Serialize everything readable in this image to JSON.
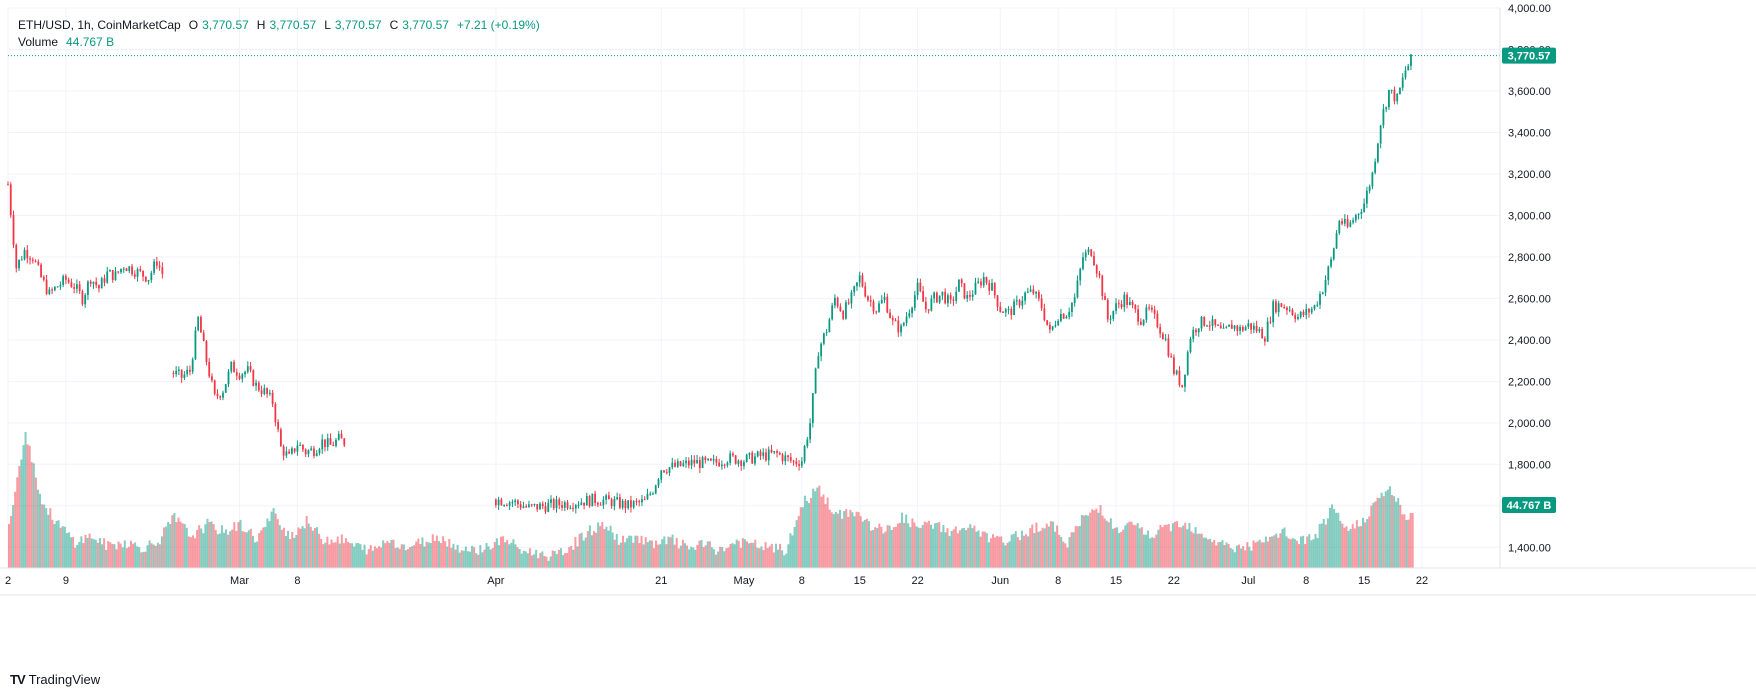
{
  "header": {
    "symbol": "ETH/USD, 1h, CoinMarketCap",
    "open_label": "O",
    "open": "3,770.57",
    "high_label": "H",
    "high": "3,770.57",
    "low_label": "L",
    "low": "3,770.57",
    "close_label": "C",
    "close": "3,770.57",
    "change": "+7.21 (+0.19%)",
    "volume_label": "Volume",
    "volume_value": "44.767 B"
  },
  "price_tag": "3,770.57",
  "volume_tag": "44.767 B",
  "brand": {
    "logo": "TV",
    "name": "TradingView"
  },
  "colors": {
    "up": "#089981",
    "down": "#F23645",
    "price_line": "#089981",
    "grid": "#F0F3FA",
    "axis_text": "#131722"
  },
  "chart_data": {
    "type": "candlestick",
    "title": "ETH/USD, 1h, CoinMarketCap",
    "timeframe": "1h",
    "y_axis": {
      "min": 1300,
      "max": 4000,
      "ticks": [
        "4,000.00",
        "3,800.00",
        "3,600.00",
        "3,400.00",
        "3,200.00",
        "3,000.00",
        "2,800.00",
        "2,600.00",
        "2,400.00",
        "2,200.00",
        "2,000.00",
        "1,800.00",
        "1,600.00",
        "1,400.00"
      ]
    },
    "x_axis": {
      "start": "2024-02-02",
      "end": "2024-07-21",
      "tick_labels": [
        {
          "label": "2",
          "date": "2024-02-02"
        },
        {
          "label": "9",
          "date": "2024-02-09"
        },
        {
          "label": "Mar",
          "date": "2024-03-01"
        },
        {
          "label": "8",
          "date": "2024-03-08"
        },
        {
          "label": "Apr",
          "date": "2024-04-01"
        },
        {
          "label": "21",
          "date": "2024-04-21"
        },
        {
          "label": "May",
          "date": "2024-05-01"
        },
        {
          "label": "8",
          "date": "2024-05-08"
        },
        {
          "label": "15",
          "date": "2024-05-15"
        },
        {
          "label": "22",
          "date": "2024-05-22"
        },
        {
          "label": "Jun",
          "date": "2024-06-01"
        },
        {
          "label": "8",
          "date": "2024-06-08"
        },
        {
          "label": "15",
          "date": "2024-06-15"
        },
        {
          "label": "22",
          "date": "2024-06-22"
        },
        {
          "label": "Jul",
          "date": "2024-07-01"
        },
        {
          "label": "8",
          "date": "2024-07-08"
        },
        {
          "label": "15",
          "date": "2024-07-15"
        },
        {
          "label": "22",
          "date": "2024-07-22"
        }
      ]
    },
    "grid": true,
    "last_price": 3770.57,
    "segments": [
      {
        "name": "segment-1",
        "points": [
          [
            "2024-02-02",
            3150
          ],
          [
            "2024-02-03",
            2750
          ],
          [
            "2024-02-04",
            2830
          ],
          [
            "2024-02-05",
            2800
          ],
          [
            "2024-02-06",
            2700
          ],
          [
            "2024-02-07",
            2620
          ],
          [
            "2024-02-08",
            2660
          ],
          [
            "2024-02-09",
            2690
          ],
          [
            "2024-02-10",
            2660
          ],
          [
            "2024-02-11",
            2600
          ],
          [
            "2024-02-12",
            2700
          ],
          [
            "2024-02-13",
            2650
          ],
          [
            "2024-02-14",
            2720
          ],
          [
            "2024-02-15",
            2710
          ],
          [
            "2024-02-16",
            2760
          ],
          [
            "2024-02-17",
            2740
          ],
          [
            "2024-02-18",
            2720
          ],
          [
            "2024-02-19",
            2700
          ],
          [
            "2024-02-20",
            2780
          ],
          [
            "2024-02-21",
            2690
          ]
        ]
      },
      {
        "name": "segment-2",
        "points": [
          [
            "2024-02-22",
            2240
          ],
          [
            "2024-02-23",
            2220
          ],
          [
            "2024-02-24",
            2250
          ],
          [
            "2024-02-25",
            2500
          ],
          [
            "2024-02-26",
            2300
          ],
          [
            "2024-02-27",
            2120
          ],
          [
            "2024-02-28",
            2160
          ],
          [
            "2024-02-29",
            2270
          ],
          [
            "2024-03-01",
            2240
          ],
          [
            "2024-03-02",
            2250
          ],
          [
            "2024-03-03",
            2180
          ],
          [
            "2024-03-04",
            2150
          ],
          [
            "2024-03-05",
            2100
          ],
          [
            "2024-03-06",
            1880
          ],
          [
            "2024-03-07",
            1830
          ],
          [
            "2024-03-08",
            1900
          ],
          [
            "2024-03-09",
            1860
          ],
          [
            "2024-03-10",
            1870
          ],
          [
            "2024-03-11",
            1910
          ],
          [
            "2024-03-12",
            1890
          ],
          [
            "2024-03-13",
            1920
          ],
          [
            "2024-03-14",
            1900
          ]
        ]
      },
      {
        "name": "segment-3",
        "points": [
          [
            "2024-04-01",
            1630
          ],
          [
            "2024-04-03",
            1620
          ],
          [
            "2024-04-05",
            1590
          ],
          [
            "2024-04-07",
            1600
          ],
          [
            "2024-04-09",
            1610
          ],
          [
            "2024-04-11",
            1620
          ],
          [
            "2024-04-13",
            1630
          ],
          [
            "2024-04-15",
            1620
          ],
          [
            "2024-04-17",
            1600
          ],
          [
            "2024-04-19",
            1620
          ],
          [
            "2024-04-20",
            1680
          ],
          [
            "2024-04-21",
            1780
          ],
          [
            "2024-04-23",
            1790
          ],
          [
            "2024-04-25",
            1810
          ],
          [
            "2024-04-27",
            1800
          ],
          [
            "2024-04-29",
            1830
          ],
          [
            "2024-05-01",
            1820
          ],
          [
            "2024-05-03",
            1840
          ],
          [
            "2024-05-05",
            1850
          ],
          [
            "2024-05-07",
            1810
          ],
          [
            "2024-05-08",
            1820
          ],
          [
            "2024-05-09",
            2000
          ],
          [
            "2024-05-10",
            2350
          ],
          [
            "2024-05-11",
            2450
          ],
          [
            "2024-05-12",
            2600
          ],
          [
            "2024-05-13",
            2530
          ],
          [
            "2024-05-14",
            2600
          ],
          [
            "2024-05-15",
            2700
          ],
          [
            "2024-05-16",
            2600
          ],
          [
            "2024-05-17",
            2550
          ],
          [
            "2024-05-18",
            2600
          ],
          [
            "2024-05-19",
            2480
          ],
          [
            "2024-05-20",
            2450
          ],
          [
            "2024-05-21",
            2550
          ],
          [
            "2024-05-22",
            2650
          ],
          [
            "2024-05-23",
            2550
          ],
          [
            "2024-05-24",
            2600
          ],
          [
            "2024-05-25",
            2620
          ],
          [
            "2024-05-26",
            2570
          ],
          [
            "2024-05-27",
            2670
          ],
          [
            "2024-05-28",
            2600
          ],
          [
            "2024-05-29",
            2650
          ],
          [
            "2024-05-30",
            2700
          ],
          [
            "2024-05-31",
            2650
          ],
          [
            "2024-06-01",
            2550
          ],
          [
            "2024-06-02",
            2530
          ],
          [
            "2024-06-03",
            2570
          ],
          [
            "2024-06-04",
            2620
          ],
          [
            "2024-06-05",
            2630
          ],
          [
            "2024-06-06",
            2560
          ],
          [
            "2024-06-07",
            2430
          ],
          [
            "2024-06-08",
            2520
          ],
          [
            "2024-06-09",
            2530
          ],
          [
            "2024-06-10",
            2600
          ],
          [
            "2024-06-11",
            2800
          ],
          [
            "2024-06-12",
            2830
          ],
          [
            "2024-06-13",
            2700
          ],
          [
            "2024-06-14",
            2500
          ],
          [
            "2024-06-15",
            2560
          ],
          [
            "2024-06-16",
            2600
          ],
          [
            "2024-06-17",
            2550
          ],
          [
            "2024-06-18",
            2500
          ],
          [
            "2024-06-19",
            2540
          ],
          [
            "2024-06-20",
            2480
          ],
          [
            "2024-06-21",
            2400
          ],
          [
            "2024-06-22",
            2250
          ],
          [
            "2024-06-23",
            2180
          ],
          [
            "2024-06-24",
            2420
          ],
          [
            "2024-06-25",
            2480
          ],
          [
            "2024-06-26",
            2490
          ],
          [
            "2024-06-27",
            2460
          ],
          [
            "2024-06-28",
            2430
          ],
          [
            "2024-06-29",
            2470
          ],
          [
            "2024-06-30",
            2450
          ],
          [
            "2024-07-01",
            2470
          ],
          [
            "2024-07-02",
            2450
          ],
          [
            "2024-07-03",
            2420
          ],
          [
            "2024-07-04",
            2560
          ],
          [
            "2024-07-05",
            2570
          ],
          [
            "2024-07-06",
            2550
          ],
          [
            "2024-07-07",
            2510
          ],
          [
            "2024-07-08",
            2530
          ],
          [
            "2024-07-09",
            2560
          ],
          [
            "2024-07-10",
            2650
          ],
          [
            "2024-07-11",
            2780
          ],
          [
            "2024-07-12",
            2980
          ],
          [
            "2024-07-13",
            2940
          ],
          [
            "2024-07-14",
            3000
          ],
          [
            "2024-07-15",
            3060
          ],
          [
            "2024-07-16",
            3200
          ],
          [
            "2024-07-17",
            3450
          ],
          [
            "2024-07-18",
            3600
          ],
          [
            "2024-07-19",
            3560
          ],
          [
            "2024-07-20",
            3700
          ],
          [
            "2024-07-21",
            3770.57
          ]
        ]
      }
    ],
    "volume": {
      "name": "Volume",
      "last": "44.767 B",
      "points": [
        [
          "2024-02-02",
          30
        ],
        [
          "2024-02-04",
          95
        ],
        [
          "2024-02-06",
          45
        ],
        [
          "2024-02-08",
          30
        ],
        [
          "2024-02-10",
          18
        ],
        [
          "2024-02-12",
          22
        ],
        [
          "2024-02-14",
          15
        ],
        [
          "2024-02-16",
          18
        ],
        [
          "2024-02-18",
          14
        ],
        [
          "2024-02-20",
          18
        ],
        [
          "2024-02-22",
          35
        ],
        [
          "2024-02-24",
          22
        ],
        [
          "2024-02-26",
          30
        ],
        [
          "2024-02-28",
          25
        ],
        [
          "2024-03-01",
          30
        ],
        [
          "2024-03-03",
          20
        ],
        [
          "2024-03-05",
          38
        ],
        [
          "2024-03-07",
          22
        ],
        [
          "2024-03-09",
          32
        ],
        [
          "2024-03-11",
          20
        ],
        [
          "2024-03-13",
          20
        ],
        [
          "2024-03-15",
          15
        ],
        [
          "2024-03-17",
          12
        ],
        [
          "2024-03-19",
          20
        ],
        [
          "2024-03-21",
          14
        ],
        [
          "2024-03-23",
          18
        ],
        [
          "2024-03-25",
          22
        ],
        [
          "2024-03-27",
          15
        ],
        [
          "2024-03-29",
          12
        ],
        [
          "2024-03-31",
          15
        ],
        [
          "2024-04-02",
          20
        ],
        [
          "2024-04-04",
          12
        ],
        [
          "2024-04-06",
          10
        ],
        [
          "2024-04-08",
          8
        ],
        [
          "2024-04-10",
          15
        ],
        [
          "2024-04-12",
          25
        ],
        [
          "2024-04-14",
          30
        ],
        [
          "2024-04-16",
          18
        ],
        [
          "2024-04-18",
          22
        ],
        [
          "2024-04-20",
          15
        ],
        [
          "2024-04-22",
          20
        ],
        [
          "2024-04-24",
          14
        ],
        [
          "2024-04-26",
          16
        ],
        [
          "2024-04-28",
          12
        ],
        [
          "2024-04-30",
          18
        ],
        [
          "2024-05-02",
          16
        ],
        [
          "2024-05-04",
          14
        ],
        [
          "2024-05-06",
          12
        ],
        [
          "2024-05-08",
          45
        ],
        [
          "2024-05-10",
          55
        ],
        [
          "2024-05-12",
          35
        ],
        [
          "2024-05-14",
          40
        ],
        [
          "2024-05-16",
          30
        ],
        [
          "2024-05-18",
          25
        ],
        [
          "2024-05-20",
          35
        ],
        [
          "2024-05-22",
          28
        ],
        [
          "2024-05-24",
          30
        ],
        [
          "2024-05-26",
          25
        ],
        [
          "2024-05-28",
          28
        ],
        [
          "2024-05-30",
          22
        ],
        [
          "2024-06-01",
          18
        ],
        [
          "2024-06-03",
          22
        ],
        [
          "2024-06-05",
          28
        ],
        [
          "2024-06-07",
          30
        ],
        [
          "2024-06-09",
          18
        ],
        [
          "2024-06-11",
          35
        ],
        [
          "2024-06-13",
          42
        ],
        [
          "2024-06-15",
          25
        ],
        [
          "2024-06-17",
          30
        ],
        [
          "2024-06-19",
          22
        ],
        [
          "2024-06-21",
          28
        ],
        [
          "2024-06-23",
          32
        ],
        [
          "2024-06-25",
          25
        ],
        [
          "2024-06-27",
          18
        ],
        [
          "2024-06-29",
          14
        ],
        [
          "2024-07-01",
          15
        ],
        [
          "2024-07-03",
          18
        ],
        [
          "2024-07-05",
          25
        ],
        [
          "2024-07-07",
          18
        ],
        [
          "2024-07-09",
          22
        ],
        [
          "2024-07-11",
          40
        ],
        [
          "2024-07-13",
          25
        ],
        [
          "2024-07-15",
          35
        ],
        [
          "2024-07-17",
          50
        ],
        [
          "2024-07-18",
          55
        ],
        [
          "2024-07-19",
          45
        ],
        [
          "2024-07-20",
          30
        ],
        [
          "2024-07-21",
          44.767
        ]
      ]
    }
  }
}
